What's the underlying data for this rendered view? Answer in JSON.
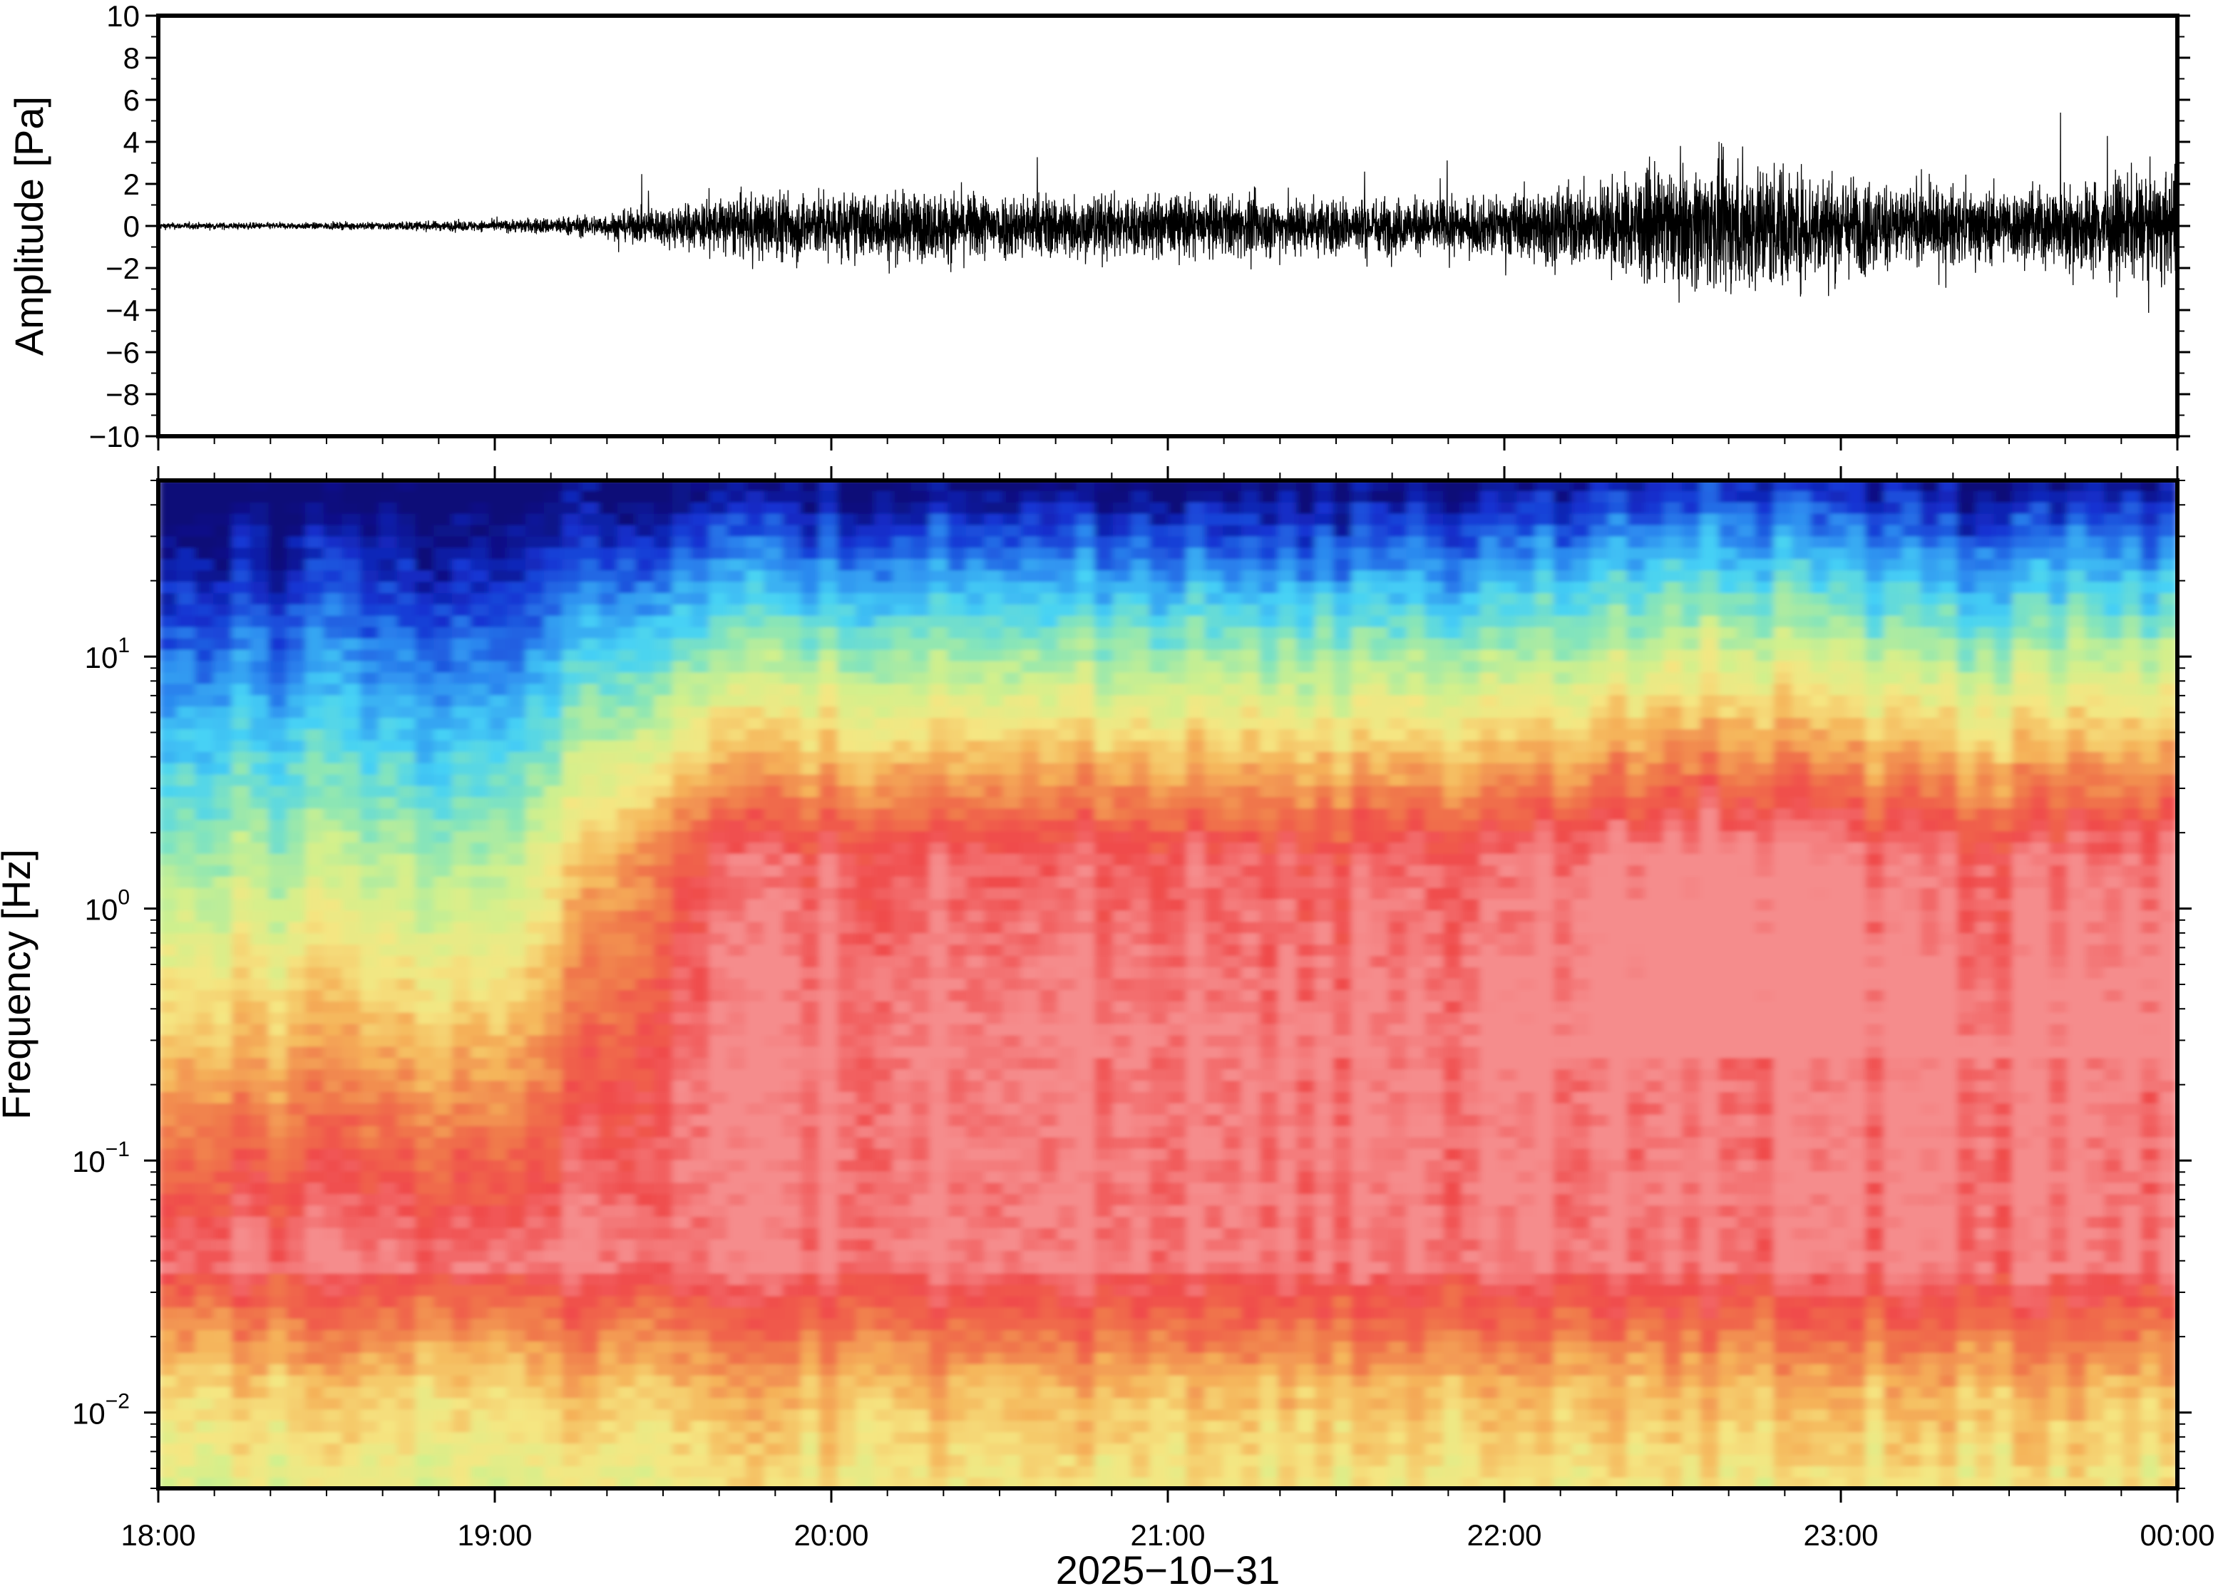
{
  "chart_data": [
    {
      "type": "line",
      "panel": "waveform",
      "ylabel": "Amplitude [Pa]",
      "ylim": [
        -10,
        10
      ],
      "yticks": [
        10,
        8,
        6,
        4,
        2,
        0,
        -2,
        -4,
        -6,
        -8,
        -10
      ],
      "ytick_labels": [
        "10",
        "8",
        "6",
        "4",
        "2",
        "0",
        "−2",
        "−4",
        "−6",
        "−8",
        "−10"
      ],
      "x_range_hours": [
        18,
        24
      ],
      "envelope": {
        "x_hours": [
          18.0,
          18.5,
          19.0,
          19.3,
          19.5,
          19.7,
          19.85,
          20.0,
          20.5,
          21.0,
          21.5,
          21.9,
          22.3,
          22.6,
          22.75,
          22.9,
          23.2,
          23.5,
          23.8,
          24.0
        ],
        "amplitude_pa": [
          0.15,
          0.15,
          0.25,
          0.5,
          0.9,
          1.3,
          1.6,
          1.5,
          1.5,
          1.4,
          1.3,
          1.2,
          2.0,
          2.8,
          3.0,
          2.5,
          1.8,
          1.6,
          2.2,
          2.3
        ]
      }
    },
    {
      "type": "heatmap",
      "panel": "spectrogram",
      "ylabel": "Frequency [Hz]",
      "yscale": "log",
      "ylim": [
        0.005,
        50
      ],
      "yticks": [
        0.01,
        0.1,
        1,
        10
      ],
      "ytick_labels": [
        {
          "base": "10",
          "exp": "−2"
        },
        {
          "base": "10",
          "exp": "−1"
        },
        {
          "base": "10",
          "exp": "0"
        },
        {
          "base": "10",
          "exp": "1"
        }
      ],
      "xlabel": "2025−10−31",
      "xticks_hours": [
        18,
        19,
        20,
        21,
        22,
        23,
        24
      ],
      "xtick_labels": [
        "18:00",
        "19:00",
        "20:00",
        "21:00",
        "22:00",
        "23:00",
        "00:00"
      ],
      "colormap": [
        "#0a0a78",
        "#1432d2",
        "#2d8cf0",
        "#46d2f5",
        "#8ce6b4",
        "#d2f08c",
        "#f5e682",
        "#f5b45a",
        "#f0784b",
        "#f04b4b",
        "#f58c8c"
      ]
    }
  ]
}
